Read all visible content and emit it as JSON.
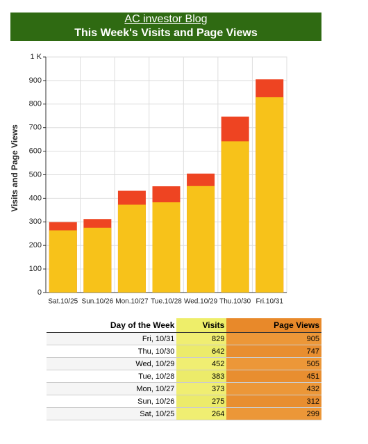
{
  "header": {
    "title": "AC investor Blog",
    "subtitle": "This Week's Visits and Page Views"
  },
  "chart_data": {
    "type": "bar",
    "y_label": "Visits and Page Views",
    "categories": [
      "Sat.10/25",
      "Sun.10/26",
      "Mon.10/27",
      "Tue.10/28",
      "Wed.10/29",
      "Thu.10/30",
      "Fri.10/31"
    ],
    "series": [
      {
        "color": "#ee4422",
        "values": [
          299,
          312,
          432,
          451,
          505,
          747,
          905
        ]
      },
      {
        "color": "#f7c21a",
        "values": [
          264,
          275,
          373,
          383,
          452,
          642,
          829
        ]
      }
    ],
    "ylim": [
      0,
      1000
    ],
    "yticks": [
      0,
      100,
      200,
      300,
      400,
      500,
      600,
      700,
      800,
      900,
      {
        "value": 1000,
        "label": "1 K"
      }
    ],
    "grid": true
  },
  "table": {
    "columns": [
      "Day of the Week",
      "Visits",
      "Page Views"
    ],
    "rows": [
      [
        "Fri, 10/31",
        "829",
        "905"
      ],
      [
        "Thu, 10/30",
        "642",
        "747"
      ],
      [
        "Wed, 10/29",
        "452",
        "505"
      ],
      [
        "Tue, 10/28",
        "383",
        "451"
      ],
      [
        "Mon, 10/27",
        "373",
        "432"
      ],
      [
        "Sun, 10/26",
        "275",
        "312"
      ],
      [
        "Sat, 10/25",
        "264",
        "299"
      ]
    ]
  }
}
